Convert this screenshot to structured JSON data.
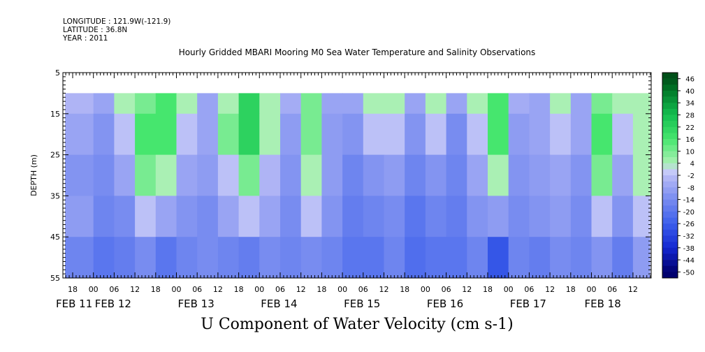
{
  "header": {
    "longitude": "LONGITUDE : 121.9W(-121.9)",
    "latitude": "LATITUDE : 36.8N",
    "year": "YEAR : 2011",
    "title": "Hourly Gridded MBARI Mooring M0 Sea Water Temperature and Salinity Observations"
  },
  "chart_data": {
    "type": "heatmap",
    "title": "Hourly Gridded MBARI Mooring M0 Sea Water Temperature and Salinity Observations",
    "xlabel": "U Component of Water Velocity (cm s-1)",
    "ylabel": "DEPTH (m)",
    "x_hour_ticks": [
      "18",
      "00",
      "06",
      "12",
      "18",
      "00",
      "06",
      "12",
      "18",
      "00",
      "06",
      "12",
      "18",
      "00",
      "06",
      "12",
      "18",
      "00",
      "06",
      "12",
      "18",
      "00",
      "06",
      "12",
      "18",
      "00",
      "06",
      "12"
    ],
    "x_day_labels": [
      "FEB 11",
      "FEB 12",
      "FEB 13",
      "FEB 14",
      "FEB 15",
      "FEB 16",
      "FEB 17",
      "FEB 18"
    ],
    "y_ticks": [
      "5",
      "15",
      "25",
      "35",
      "45",
      "55"
    ],
    "ylim": [
      55,
      5
    ],
    "data_depth_range": [
      10,
      55
    ],
    "colorbar": {
      "labels": [
        "46",
        "40",
        "34",
        "28",
        "22",
        "16",
        "10",
        "4",
        "-2",
        "-8",
        "-14",
        "-20",
        "-26",
        "-32",
        "-38",
        "-44",
        "-50"
      ],
      "min": -50,
      "max": 46,
      "step": 3
    },
    "time_columns": [
      "2011-02-11T21",
      "2011-02-12T03",
      "2011-02-12T09",
      "2011-02-12T15",
      "2011-02-12T21",
      "2011-02-13T03",
      "2011-02-13T09",
      "2011-02-13T15",
      "2011-02-13T21",
      "2011-02-14T03",
      "2011-02-14T09",
      "2011-02-14T15",
      "2011-02-14T21",
      "2011-02-15T03",
      "2011-02-15T09",
      "2011-02-15T15",
      "2011-02-15T21",
      "2011-02-16T03",
      "2011-02-16T09",
      "2011-02-16T15",
      "2011-02-16T21",
      "2011-02-17T03",
      "2011-02-17T09",
      "2011-02-17T15",
      "2011-02-17T21",
      "2011-02-18T03",
      "2011-02-18T09",
      "2011-02-18T15"
    ],
    "depth_rows": [
      10,
      20,
      30,
      40,
      50
    ],
    "values_cm_s": [
      [
        -4,
        -8,
        4,
        10,
        16,
        4,
        -8,
        4,
        22,
        4,
        -6,
        10,
        -8,
        -8,
        4,
        4,
        -8,
        4,
        -8,
        4,
        16,
        -6,
        -8,
        4,
        -8,
        10,
        4,
        4
      ],
      [
        -8,
        -12,
        -2,
        16,
        16,
        -2,
        -8,
        10,
        22,
        4,
        -10,
        10,
        -10,
        -12,
        -2,
        -2,
        -12,
        -2,
        -14,
        -2,
        16,
        -10,
        -8,
        -2,
        -8,
        16,
        -2,
        4
      ],
      [
        -12,
        -14,
        -8,
        10,
        4,
        -8,
        -10,
        -2,
        10,
        -4,
        -12,
        4,
        -10,
        -16,
        -12,
        -10,
        -16,
        -12,
        -16,
        -8,
        4,
        -12,
        -10,
        -8,
        -12,
        10,
        -8,
        4
      ],
      [
        -10,
        -16,
        -14,
        -2,
        -8,
        -12,
        -14,
        -8,
        -2,
        -8,
        -14,
        -2,
        -12,
        -18,
        -16,
        -14,
        -20,
        -16,
        -18,
        -12,
        -10,
        -14,
        -12,
        -10,
        -14,
        -2,
        -12,
        -2
      ],
      [
        -16,
        -20,
        -18,
        -14,
        -20,
        -16,
        -14,
        -16,
        -18,
        -14,
        -16,
        -14,
        -16,
        -20,
        -20,
        -16,
        -22,
        -20,
        -20,
        -16,
        -28,
        -16,
        -18,
        -14,
        -16,
        -12,
        -18,
        -10
      ]
    ]
  }
}
